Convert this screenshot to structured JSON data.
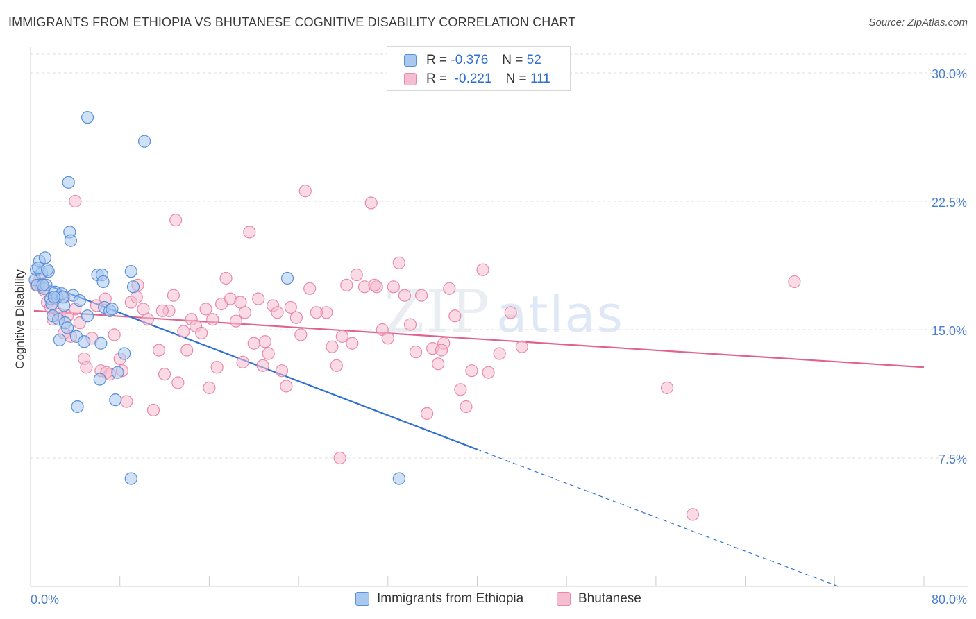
{
  "header": {
    "title": "IMMIGRANTS FROM ETHIOPIA VS BHUTANESE COGNITIVE DISABILITY CORRELATION CHART",
    "source": "Source: ZipAtlas.com"
  },
  "watermark": {
    "zip": "ZIP",
    "atlas": "atlas"
  },
  "legend": {
    "rows": [
      {
        "r_label": "R =",
        "r_value": "-0.376",
        "n_label": "N =",
        "n_value": "52"
      },
      {
        "r_label": "R =",
        "r_value": "-0.221",
        "n_label": "N =",
        "n_value": "111"
      }
    ]
  },
  "bottom_legend": {
    "ethiopia": "Immigrants from Ethiopia",
    "bhutanese": "Bhutanese"
  },
  "colors": {
    "ethiopia_fill": "#a8c8f0",
    "ethiopia_stroke": "#5b8fd6",
    "ethiopia_line": "#2f6fd1",
    "bhutanese_fill": "#f6bdd0",
    "bhutanese_stroke": "#e889aa",
    "bhutanese_line": "#e0628e",
    "tick_text": "#4a7fd0"
  },
  "chart_data": {
    "type": "scatter",
    "title": "IMMIGRANTS FROM ETHIOPIA VS BHUTANESE COGNITIVE DISABILITY CORRELATION CHART",
    "xlabel": "",
    "ylabel": "Cognitive Disability",
    "xlim": [
      0,
      80
    ],
    "ylim": [
      0,
      31.5
    ],
    "x_tick_labels": [
      "0.0%",
      "80.0%"
    ],
    "y_ticks": [
      7.5,
      15.0,
      22.5,
      30.0
    ],
    "y_tick_labels": [
      "7.5%",
      "15.0%",
      "22.5%",
      "30.0%"
    ],
    "grid": true,
    "legend_position": "top-center",
    "series": [
      {
        "name": "Immigrants from Ethiopia",
        "r": -0.376,
        "n": 52,
        "trend": {
          "x": [
            0.3,
            40.0
          ],
          "y": [
            17.9,
            8.0
          ],
          "dashed_to": [
            80.0,
            -1.9
          ]
        },
        "points": [
          [
            0.4,
            17.9
          ],
          [
            0.5,
            18.5
          ],
          [
            0.6,
            17.6
          ],
          [
            0.8,
            19.0
          ],
          [
            1.0,
            18.3
          ],
          [
            1.2,
            17.4
          ],
          [
            1.3,
            19.2
          ],
          [
            1.4,
            17.6
          ],
          [
            1.6,
            18.4
          ],
          [
            1.8,
            16.8
          ],
          [
            1.9,
            16.5
          ],
          [
            2.0,
            15.8
          ],
          [
            2.2,
            17.2
          ],
          [
            2.4,
            16.9
          ],
          [
            2.5,
            15.6
          ],
          [
            2.6,
            14.4
          ],
          [
            2.8,
            17.1
          ],
          [
            3.0,
            16.4
          ],
          [
            3.1,
            15.4
          ],
          [
            3.3,
            15.1
          ],
          [
            3.5,
            20.7
          ],
          [
            3.6,
            20.2
          ],
          [
            3.8,
            17.0
          ],
          [
            3.4,
            23.6
          ],
          [
            5.1,
            27.4
          ],
          [
            4.1,
            14.6
          ],
          [
            4.2,
            10.5
          ],
          [
            4.4,
            16.7
          ],
          [
            5.1,
            15.8
          ],
          [
            6.0,
            18.2
          ],
          [
            6.4,
            18.2
          ],
          [
            6.5,
            17.8
          ],
          [
            6.6,
            16.3
          ],
          [
            7.1,
            16.1
          ],
          [
            6.3,
            14.2
          ],
          [
            6.2,
            12.1
          ],
          [
            7.8,
            12.5
          ],
          [
            8.4,
            13.6
          ],
          [
            9.0,
            18.4
          ],
          [
            9.2,
            17.5
          ],
          [
            9.0,
            6.3
          ],
          [
            10.2,
            26.0
          ],
          [
            7.6,
            10.9
          ],
          [
            23.0,
            18.0
          ],
          [
            33.0,
            6.3
          ],
          [
            2.9,
            16.9
          ],
          [
            1.1,
            17.6
          ],
          [
            0.7,
            18.6
          ],
          [
            2.1,
            16.9
          ],
          [
            4.8,
            14.3
          ],
          [
            7.3,
            16.2
          ],
          [
            1.5,
            18.5
          ]
        ]
      },
      {
        "name": "Bhutanese",
        "r": -0.221,
        "n": 111,
        "trend": {
          "x": [
            0.3,
            80.0
          ],
          "y": [
            16.1,
            12.8
          ]
        },
        "points": [
          [
            0.5,
            17.6
          ],
          [
            0.8,
            17.9
          ],
          [
            1.2,
            17.3
          ],
          [
            1.5,
            16.6
          ],
          [
            1.8,
            16.3
          ],
          [
            2.2,
            16.8
          ],
          [
            2.6,
            15.9
          ],
          [
            3.0,
            16.9
          ],
          [
            3.3,
            15.8
          ],
          [
            3.6,
            14.6
          ],
          [
            4.0,
            16.2
          ],
          [
            4.4,
            15.4
          ],
          [
            4.8,
            13.3
          ],
          [
            5.0,
            12.8
          ],
          [
            5.5,
            14.5
          ],
          [
            5.9,
            16.4
          ],
          [
            6.3,
            12.6
          ],
          [
            6.7,
            16.8
          ],
          [
            7.1,
            12.4
          ],
          [
            7.5,
            14.7
          ],
          [
            8.0,
            13.3
          ],
          [
            8.6,
            10.8
          ],
          [
            9.0,
            16.6
          ],
          [
            9.6,
            17.6
          ],
          [
            10.1,
            16.2
          ],
          [
            10.5,
            15.6
          ],
          [
            11.0,
            10.3
          ],
          [
            11.5,
            13.8
          ],
          [
            12.0,
            12.4
          ],
          [
            12.4,
            16.1
          ],
          [
            12.8,
            17.0
          ],
          [
            13.2,
            11.9
          ],
          [
            13.7,
            14.9
          ],
          [
            14.0,
            13.8
          ],
          [
            14.4,
            15.6
          ],
          [
            14.8,
            15.2
          ],
          [
            15.3,
            14.8
          ],
          [
            15.7,
            16.2
          ],
          [
            16.0,
            11.6
          ],
          [
            16.3,
            15.6
          ],
          [
            16.7,
            12.8
          ],
          [
            17.1,
            16.5
          ],
          [
            17.5,
            18.0
          ],
          [
            17.9,
            16.8
          ],
          [
            18.4,
            15.5
          ],
          [
            18.8,
            16.6
          ],
          [
            19.2,
            16.0
          ],
          [
            19.6,
            20.7
          ],
          [
            20.0,
            14.2
          ],
          [
            20.4,
            16.8
          ],
          [
            20.8,
            12.9
          ],
          [
            21.3,
            13.6
          ],
          [
            21.7,
            16.4
          ],
          [
            22.1,
            16.0
          ],
          [
            22.5,
            12.6
          ],
          [
            22.9,
            11.7
          ],
          [
            23.3,
            16.3
          ],
          [
            23.8,
            15.7
          ],
          [
            24.2,
            14.7
          ],
          [
            24.6,
            23.1
          ],
          [
            25.0,
            17.4
          ],
          [
            26.5,
            16.0
          ],
          [
            27.0,
            14.0
          ],
          [
            27.4,
            12.9
          ],
          [
            27.9,
            14.6
          ],
          [
            28.3,
            17.6
          ],
          [
            28.8,
            14.2
          ],
          [
            29.2,
            18.2
          ],
          [
            29.9,
            17.5
          ],
          [
            30.5,
            22.4
          ],
          [
            31.0,
            17.5
          ],
          [
            31.5,
            15.0
          ],
          [
            32.0,
            14.5
          ],
          [
            32.5,
            17.5
          ],
          [
            33.0,
            18.9
          ],
          [
            33.5,
            17.0
          ],
          [
            34.0,
            15.3
          ],
          [
            34.5,
            13.7
          ],
          [
            35.0,
            17.0
          ],
          [
            35.5,
            10.1
          ],
          [
            36.0,
            13.9
          ],
          [
            36.5,
            13.0
          ],
          [
            37.0,
            14.2
          ],
          [
            37.5,
            17.4
          ],
          [
            38.0,
            15.8
          ],
          [
            38.5,
            11.5
          ],
          [
            39.0,
            10.5
          ],
          [
            39.5,
            12.6
          ],
          [
            40.5,
            18.5
          ],
          [
            41.0,
            12.5
          ],
          [
            42.0,
            13.6
          ],
          [
            43.0,
            16.0
          ],
          [
            44.0,
            14.0
          ],
          [
            27.7,
            7.5
          ],
          [
            59.3,
            4.2
          ],
          [
            57.0,
            11.6
          ],
          [
            68.4,
            17.8
          ],
          [
            9.5,
            16.9
          ],
          [
            11.8,
            16.1
          ],
          [
            4.0,
            22.5
          ],
          [
            8.2,
            12.6
          ],
          [
            3.0,
            14.8
          ],
          [
            6.8,
            12.5
          ],
          [
            2.0,
            15.6
          ],
          [
            13.0,
            21.4
          ],
          [
            25.6,
            16.0
          ],
          [
            19.0,
            13.1
          ],
          [
            1.0,
            17.5
          ],
          [
            36.8,
            13.8
          ],
          [
            30.8,
            17.6
          ],
          [
            21.0,
            14.3
          ]
        ]
      }
    ]
  }
}
